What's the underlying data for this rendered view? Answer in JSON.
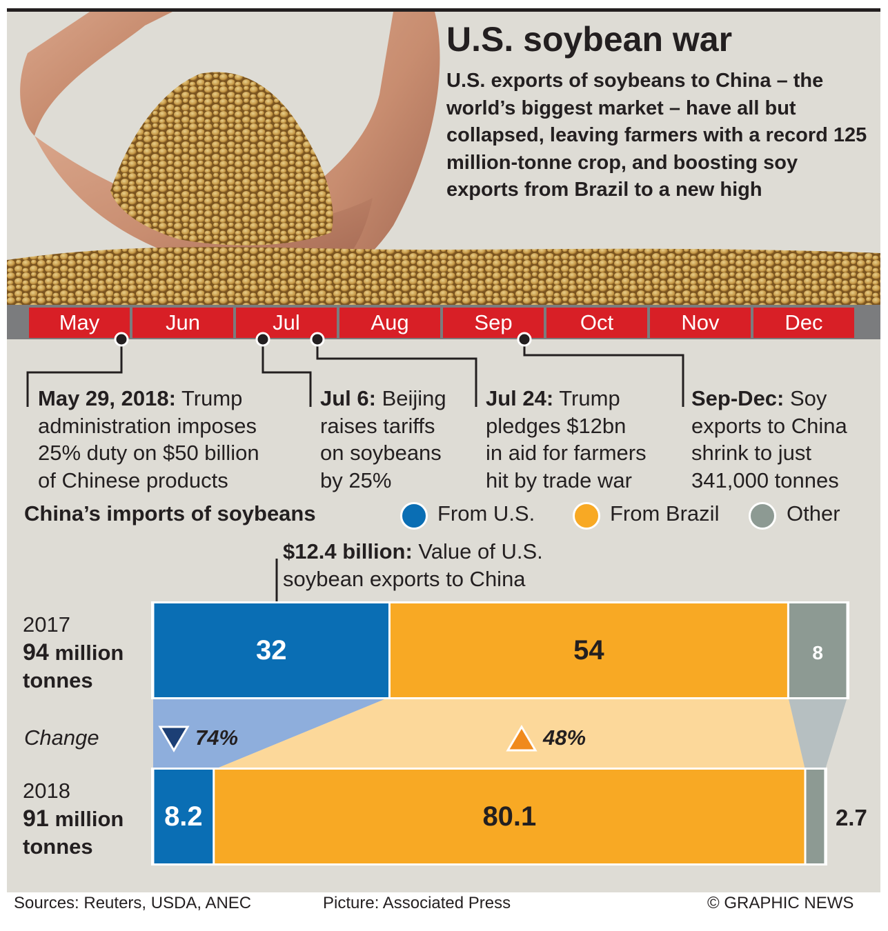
{
  "title": "U.S. soybean war",
  "deck": "U.S. exports of soybeans to China – the world’s biggest market – have all but collapsed, leaving farmers with a record 125 million-tonne crop, and boosting soy exports from Brazil to a new high",
  "timeline": {
    "months": [
      "May",
      "Jun",
      "Jul",
      "Aug",
      "Sep",
      "Oct",
      "Nov",
      "Dec"
    ],
    "events": [
      {
        "head": "May 29, 2018:",
        "lines": [
          " Trump",
          "administration imposes",
          "25% duty on $50 billion",
          "of Chinese products"
        ]
      },
      {
        "head": "Jul 6:",
        "lines": [
          " Beijing",
          "raises tariffs",
          "on soybeans",
          "by 25%"
        ]
      },
      {
        "head": "Jul 24:",
        "lines": [
          " Trump",
          "pledges $12bn",
          "in aid for farmers",
          "hit by trade war"
        ]
      },
      {
        "head": "Sep-Dec:",
        "lines": [
          " Soy",
          "exports to China",
          "shrink to just",
          "341,000 tonnes"
        ]
      }
    ]
  },
  "legend": {
    "title": "China’s imports of soybeans",
    "items": [
      {
        "label": "From U.S.",
        "color": "#0a6eb4"
      },
      {
        "label": "From Brazil",
        "color": "#f8a924"
      },
      {
        "label": "Other",
        "color": "#8d9a93"
      }
    ]
  },
  "callout": {
    "head": "$12.4 billion:",
    "text1": " Value of U.S.",
    "text2": "soybean exports to China"
  },
  "chart_data": {
    "type": "bar",
    "orientation": "horizontal",
    "stacked": true,
    "unit": "million tonnes",
    "categories": [
      "2017",
      "2018"
    ],
    "category_totals": [
      "94 million tonnes",
      "91 million tonnes"
    ],
    "series": [
      {
        "name": "From U.S.",
        "values": [
          32,
          8.2
        ]
      },
      {
        "name": "From Brazil",
        "values": [
          54,
          80.1
        ]
      },
      {
        "name": "Other",
        "values": [
          8,
          2.7
        ]
      }
    ],
    "change_label": "Change",
    "changes": [
      {
        "series": "From U.S.",
        "direction": "down",
        "label": "74%"
      },
      {
        "series": "From Brazil",
        "direction": "up",
        "label": "48%"
      }
    ]
  },
  "rows": [
    {
      "year": "2017",
      "num": "94",
      "unit1": " million",
      "unit2": "tonnes"
    },
    {
      "year": "2018",
      "num": "91",
      "unit1": " million",
      "unit2": "tonnes"
    }
  ],
  "footer": {
    "sources": "Sources: Reuters, USDA, ANEC",
    "picture": "Picture: Associated Press",
    "credit": "© GRAPHIC NEWS"
  }
}
